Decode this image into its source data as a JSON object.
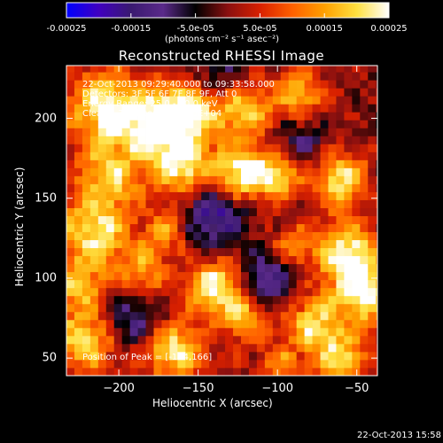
{
  "chart_data": {
    "type": "heatmap",
    "title": "Reconstructed RHESSI Image",
    "xlabel": "Heliocentric X (arcsec)",
    "ylabel": "Heliocentric Y (arcsec)",
    "xlim": [
      -233,
      -37
    ],
    "ylim": [
      39,
      233
    ],
    "x_ticks": [
      -200,
      -150,
      -100,
      -50
    ],
    "y_ticks": [
      50,
      100,
      150,
      200
    ],
    "colorbar": {
      "range": [
        -0.00025,
        0.00025
      ],
      "ticks": [
        "-0.00025",
        "-0.00015",
        "-5.0e-05",
        "5.0e-05",
        "0.00015",
        "0.00025"
      ],
      "unit_label": "(photons cm⁻² s⁻¹ asec⁻²)",
      "colors": [
        "#0000ff",
        "#4000c0",
        "#3a1a70",
        "#5a2a8a",
        "#000000",
        "#8a1010",
        "#d82000",
        "#ff6000",
        "#ffa000",
        "#ffe040",
        "#ffffff"
      ]
    },
    "annotations": [
      "22-Oct-2013 09:29:40.000 to 09:33:58.000",
      "Detectors: 3F 5F 6F 7F 8F 9F, Att 0",
      "Energy Range: 25.0 - 50.0 keV",
      "Clean    Total counts: 1.10E+04"
    ],
    "peak_label": "Position of Peak = [-124,166]",
    "peak_position": [
      -124,
      166
    ],
    "blobs": [
      {
        "x": -209,
        "y": 207,
        "amp": 1.0,
        "s": 16
      },
      {
        "x": -178,
        "y": 196,
        "amp": 0.9,
        "s": 14
      },
      {
        "x": -155,
        "y": 205,
        "amp": 0.95,
        "s": 14
      },
      {
        "x": -160,
        "y": 170,
        "amp": 0.95,
        "s": 13
      },
      {
        "x": -205,
        "y": 165,
        "amp": 0.75,
        "s": 14
      },
      {
        "x": -215,
        "y": 130,
        "amp": 0.9,
        "s": 15
      },
      {
        "x": -225,
        "y": 95,
        "amp": 0.7,
        "s": 12
      },
      {
        "x": -222,
        "y": 60,
        "amp": 0.85,
        "s": 13
      },
      {
        "x": -185,
        "y": 105,
        "amp": 0.6,
        "s": 11
      },
      {
        "x": -165,
        "y": 55,
        "amp": 0.9,
        "s": 13
      },
      {
        "x": -170,
        "y": 130,
        "amp": 0.55,
        "s": 10
      },
      {
        "x": -124,
        "y": 166,
        "amp": 1.0,
        "s": 12
      },
      {
        "x": -100,
        "y": 165,
        "amp": 0.8,
        "s": 11
      },
      {
        "x": -120,
        "y": 205,
        "amp": 0.75,
        "s": 12
      },
      {
        "x": -85,
        "y": 215,
        "amp": 0.7,
        "s": 11
      },
      {
        "x": -140,
        "y": 95,
        "amp": 1.0,
        "s": 12
      },
      {
        "x": -120,
        "y": 75,
        "amp": 0.7,
        "s": 10
      },
      {
        "x": -90,
        "y": 120,
        "amp": 0.55,
        "s": 10
      },
      {
        "x": -60,
        "y": 162,
        "amp": 0.85,
        "s": 12
      },
      {
        "x": -55,
        "y": 115,
        "amp": 1.0,
        "s": 14
      },
      {
        "x": -45,
        "y": 90,
        "amp": 0.95,
        "s": 13
      },
      {
        "x": -78,
        "y": 72,
        "amp": 0.8,
        "s": 12
      },
      {
        "x": -60,
        "y": 50,
        "amp": 0.8,
        "s": 12
      },
      {
        "x": -100,
        "y": 45,
        "amp": 0.5,
        "s": 10
      },
      {
        "x": -140,
        "y": 140,
        "amp": -0.7,
        "s": 14
      },
      {
        "x": -105,
        "y": 100,
        "amp": -0.6,
        "s": 12
      },
      {
        "x": -190,
        "y": 75,
        "amp": -0.5,
        "s": 12
      },
      {
        "x": -85,
        "y": 185,
        "amp": -0.4,
        "s": 12
      },
      {
        "x": -140,
        "y": 225,
        "amp": -0.4,
        "s": 12
      }
    ]
  },
  "footer_timestamp": "22-Oct-2013 15:58"
}
